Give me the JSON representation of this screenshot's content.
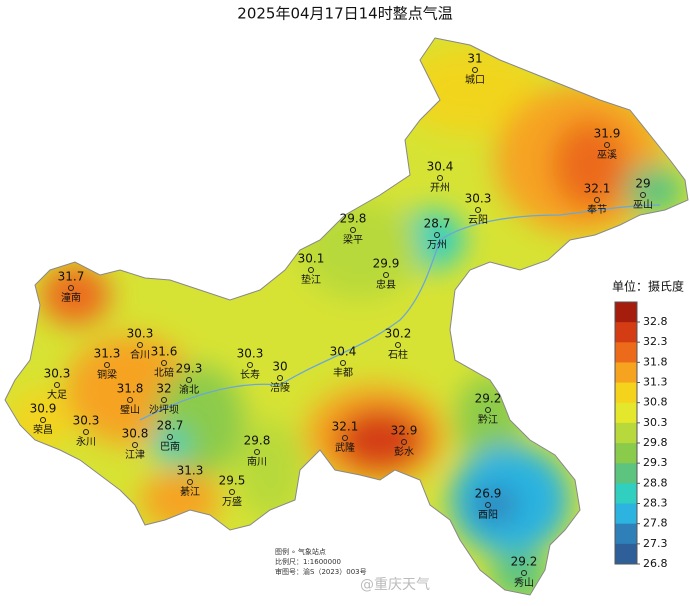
{
  "title": "2025年04月17日14时整点气温",
  "stations": [
    {
      "name": "城口",
      "value": 31
    },
    {
      "name": "巫溪",
      "value": 31.9
    },
    {
      "name": "开州",
      "value": 30.4
    },
    {
      "name": "奉节",
      "value": 32.1
    },
    {
      "name": "巫山",
      "value": 29
    },
    {
      "name": "云阳",
      "value": 30.3
    },
    {
      "name": "万州",
      "value": 28.7
    },
    {
      "name": "梁平",
      "value": 29.8
    },
    {
      "name": "垫江",
      "value": 30.1
    },
    {
      "name": "忠县",
      "value": 29.9
    },
    {
      "name": "石柱",
      "value": 30.2
    },
    {
      "name": "潼南",
      "value": 31.7
    },
    {
      "name": "合川",
      "value": 30.3
    },
    {
      "name": "北碚",
      "value": 31.6
    },
    {
      "name": "铜梁",
      "value": 31.3
    },
    {
      "name": "大足",
      "value": 30.3
    },
    {
      "name": "渝北",
      "value": 29.3
    },
    {
      "name": "长寿",
      "value": 30.3
    },
    {
      "name": "涪陵",
      "value": 30
    },
    {
      "name": "丰都",
      "value": 30.4
    },
    {
      "name": "璧山",
      "value": 31.8
    },
    {
      "name": "沙坪坝",
      "value": 32
    },
    {
      "name": "荣昌",
      "value": 30.9
    },
    {
      "name": "永川",
      "value": 30.3
    },
    {
      "name": "江津",
      "value": 30.8
    },
    {
      "name": "巴南",
      "value": 28.7
    },
    {
      "name": "南川",
      "value": 29.8
    },
    {
      "name": "武隆",
      "value": 32.1
    },
    {
      "name": "彭水",
      "value": 32.9
    },
    {
      "name": "黔江",
      "value": 29.2
    },
    {
      "name": "綦江",
      "value": 31.3
    },
    {
      "name": "万盛",
      "value": 29.5
    },
    {
      "name": "酉阳",
      "value": 26.9
    },
    {
      "name": "秀山",
      "value": 29.2
    }
  ],
  "legend": {
    "title": "单位：摄氏度",
    "ticks": [
      32.8,
      32.3,
      31.8,
      31.3,
      30.8,
      30.3,
      29.8,
      29.3,
      28.8,
      28.3,
      27.8,
      27.3,
      26.8
    ],
    "colors": [
      "#a51d0d",
      "#d43c14",
      "#ec6b1b",
      "#f6a320",
      "#f5d31d",
      "#e4e72b",
      "#b8d93b",
      "#8bcb4c",
      "#5cc47f",
      "#30cfbf",
      "#2cb3e0",
      "#2f80b8",
      "#2f5f98"
    ]
  },
  "notes": [
    "图例  ∘  气象站点",
    "比例尺：1:1600000",
    "审图号：渝S（2023）003号"
  ],
  "watermark": "@重庆天气"
}
